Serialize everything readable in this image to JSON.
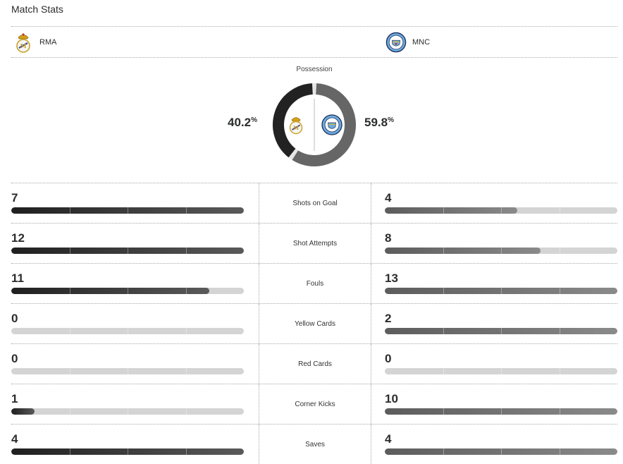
{
  "title": "Match Stats",
  "home": {
    "abbr": "RMA",
    "crest_icon": "real-madrid-crest-icon"
  },
  "away": {
    "abbr": "MNC",
    "crest_icon": "manchester-city-crest-icon"
  },
  "possession": {
    "label": "Possession",
    "home_value": "40.2",
    "away_value": "59.8",
    "unit": "%",
    "home_fraction": 0.402,
    "away_fraction": 0.598
  },
  "colors": {
    "home": "#222222",
    "away": "#666666",
    "track": "#d4d4d4"
  },
  "stats": [
    {
      "label": "Shots on Goal",
      "home": "7",
      "away": "4",
      "home_fill": 1.0,
      "away_fill": 0.57
    },
    {
      "label": "Shot Attempts",
      "home": "12",
      "away": "8",
      "home_fill": 1.0,
      "away_fill": 0.67
    },
    {
      "label": "Fouls",
      "home": "11",
      "away": "13",
      "home_fill": 0.85,
      "away_fill": 1.0
    },
    {
      "label": "Yellow Cards",
      "home": "0",
      "away": "2",
      "home_fill": 0.0,
      "away_fill": 1.0
    },
    {
      "label": "Red Cards",
      "home": "0",
      "away": "0",
      "home_fill": 0.0,
      "away_fill": 0.0
    },
    {
      "label": "Corner Kicks",
      "home": "1",
      "away": "10",
      "home_fill": 0.1,
      "away_fill": 1.0
    },
    {
      "label": "Saves",
      "home": "4",
      "away": "4",
      "home_fill": 1.0,
      "away_fill": 1.0
    }
  ]
}
